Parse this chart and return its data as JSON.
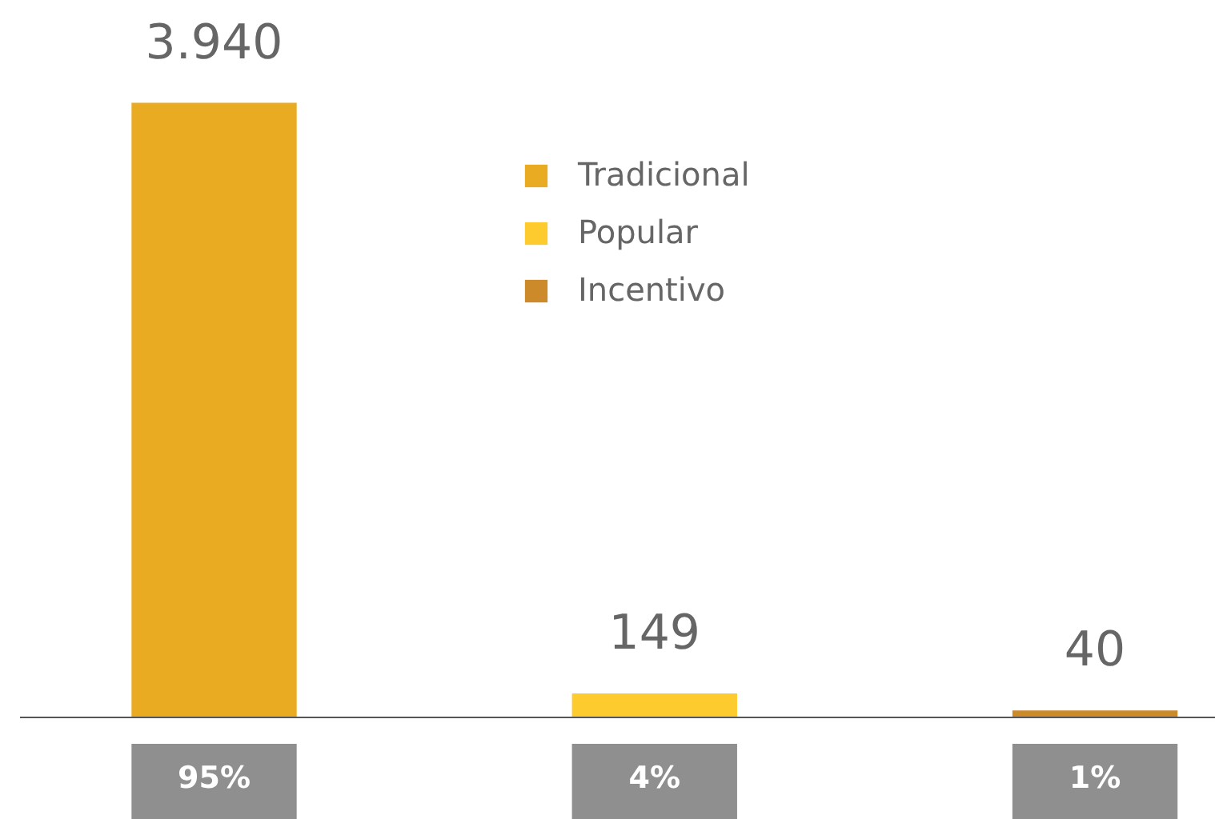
{
  "chart_data": {
    "type": "bar",
    "categories": [
      "95%",
      "4%",
      "1%"
    ],
    "series": [
      {
        "name": "Tradicional",
        "color": "#e8ab22",
        "values": [
          3940,
          null,
          null
        ],
        "value_labels": [
          "3.940",
          null,
          null
        ]
      },
      {
        "name": "Popular",
        "color": "#fecb2f",
        "values": [
          null,
          149,
          null
        ],
        "value_labels": [
          null,
          "149",
          null
        ]
      },
      {
        "name": "Incentivo",
        "color": "#cd8a2a",
        "values": [
          null,
          null,
          40
        ],
        "value_labels": [
          null,
          null,
          "40"
        ]
      }
    ],
    "ylim": [
      0,
      4600
    ],
    "legend": "top",
    "tick_labels": "x"
  }
}
